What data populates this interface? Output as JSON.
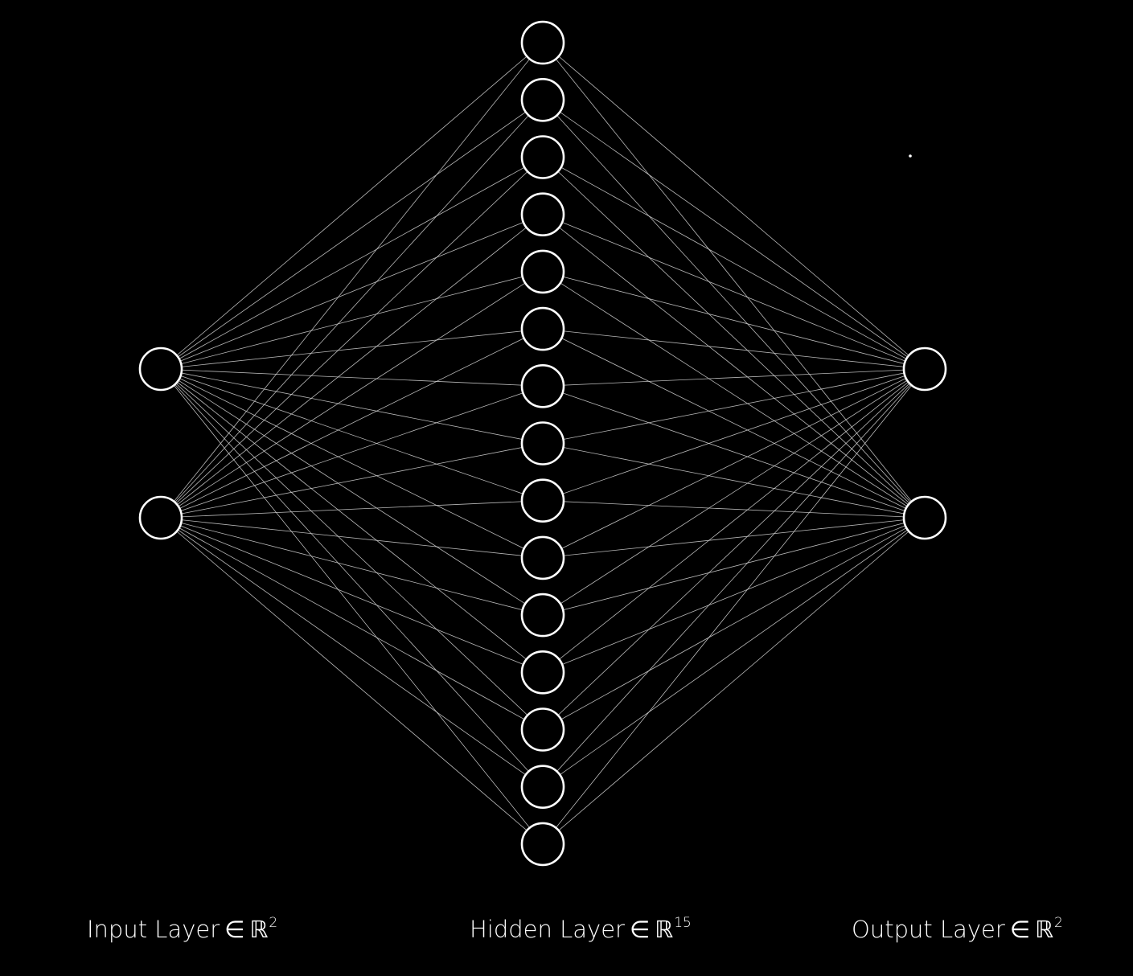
{
  "diagram": {
    "layers": [
      {
        "name": "Input Layer",
        "symbol": "∈",
        "space": "ℝ",
        "dim": "2",
        "nodes": 2
      },
      {
        "name": "Hidden Layer",
        "symbol": "∈",
        "space": "ℝ",
        "dim": "15",
        "nodes": 15
      },
      {
        "name": "Output Layer",
        "symbol": "∈",
        "space": "ℝ",
        "dim": "2",
        "nodes": 2
      }
    ],
    "connectivity": "fully-connected",
    "colors": {
      "background": "#000000",
      "node_stroke": "#ffffff",
      "edge": "#d9d9d9",
      "text": "#ffffff"
    }
  }
}
